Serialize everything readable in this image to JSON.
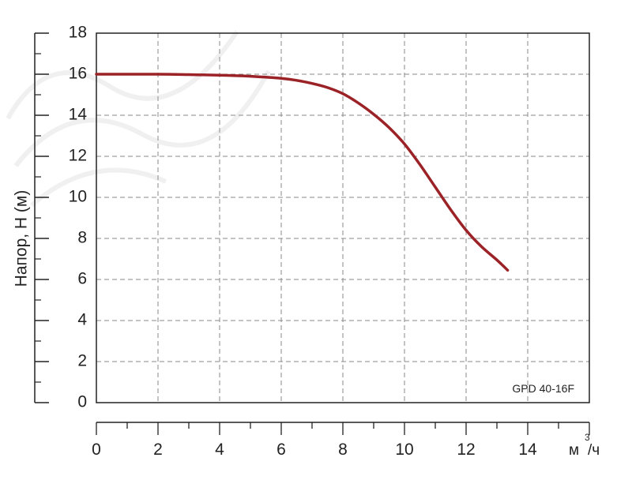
{
  "chart_data": {
    "type": "line",
    "ylabel": "Напор, Н (м)",
    "xunit": {
      "base": "м",
      "sup": "3",
      "tail": "/ч"
    },
    "annotation": "GPD 40-16F",
    "xlim": [
      0,
      16
    ],
    "ylim": [
      0,
      18
    ],
    "xticks": [
      0,
      2,
      4,
      6,
      8,
      10,
      12,
      14
    ],
    "yticks": [
      0,
      2,
      4,
      6,
      8,
      10,
      12,
      14,
      16,
      18
    ],
    "grid": true,
    "series": [
      {
        "color": "#9b2226",
        "x": [
          0,
          2,
          3,
          4,
          5,
          6,
          6.5,
          7,
          7.5,
          8,
          8.5,
          9,
          9.5,
          10,
          10.5,
          11,
          11.5,
          12,
          12.5,
          13,
          13.35
        ],
        "y": [
          16,
          16,
          15.98,
          15.95,
          15.9,
          15.8,
          15.7,
          15.55,
          15.35,
          15.05,
          14.6,
          14.05,
          13.4,
          12.6,
          11.6,
          10.5,
          9.4,
          8.4,
          7.6,
          6.95,
          6.45
        ]
      }
    ]
  }
}
